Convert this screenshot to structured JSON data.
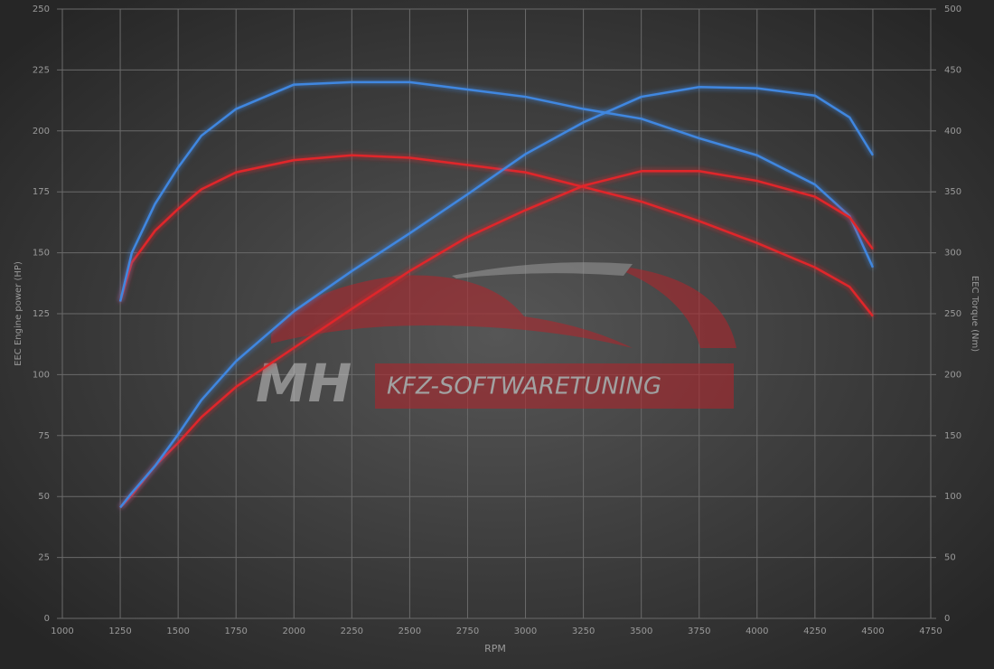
{
  "chart_data": {
    "type": "line",
    "xlabel": "RPM",
    "ylabel": "EEC Engine power (HP)",
    "y2label": "EEC Torque (Nm)",
    "watermark": [
      "MH",
      "KFZ-SOFTWARETUNING"
    ],
    "x": [
      1250,
      1300,
      1400,
      1500,
      1600,
      1750,
      2000,
      2250,
      2500,
      2750,
      3000,
      3250,
      3500,
      3750,
      4000,
      4250,
      4400,
      4500
    ],
    "series": [
      {
        "color": "#e0262b",
        "axis": "y",
        "values": [
          130,
          146,
          159,
          168,
          176,
          183,
          188,
          190,
          189,
          186,
          183,
          177,
          171,
          163,
          154,
          144,
          136,
          124
        ]
      },
      {
        "color": "#3f87e0",
        "axis": "y",
        "values": [
          130,
          150,
          170,
          185,
          198,
          209,
          219,
          220,
          220,
          217,
          214,
          209,
          205,
          197,
          190,
          178,
          165,
          144
        ]
      },
      {
        "color": "#e0262b",
        "axis": "y2",
        "values": [
          91,
          101,
          125,
          144,
          165,
          190,
          222,
          254,
          285,
          313,
          335,
          355,
          367,
          367,
          359,
          346,
          329,
          303
        ]
      },
      {
        "color": "#3f87e0",
        "axis": "y2",
        "values": [
          91,
          103,
          125,
          151,
          179,
          211,
          252,
          285,
          316,
          348,
          381,
          407,
          428,
          436,
          435,
          429,
          411,
          380
        ]
      }
    ],
    "xlim": [
      1000,
      4750
    ],
    "xticks": [
      1000,
      1250,
      1500,
      1750,
      2000,
      2250,
      2500,
      2750,
      3000,
      3250,
      3500,
      3750,
      4000,
      4250,
      4500,
      4750
    ],
    "ylim": [
      0,
      250
    ],
    "yticks": [
      0,
      25,
      50,
      75,
      100,
      125,
      150,
      175,
      200,
      225,
      250
    ],
    "y2lim": [
      0,
      500
    ],
    "y2ticks": [
      0,
      50,
      100,
      150,
      200,
      250,
      300,
      350,
      400,
      450,
      500
    ],
    "grid": true
  }
}
